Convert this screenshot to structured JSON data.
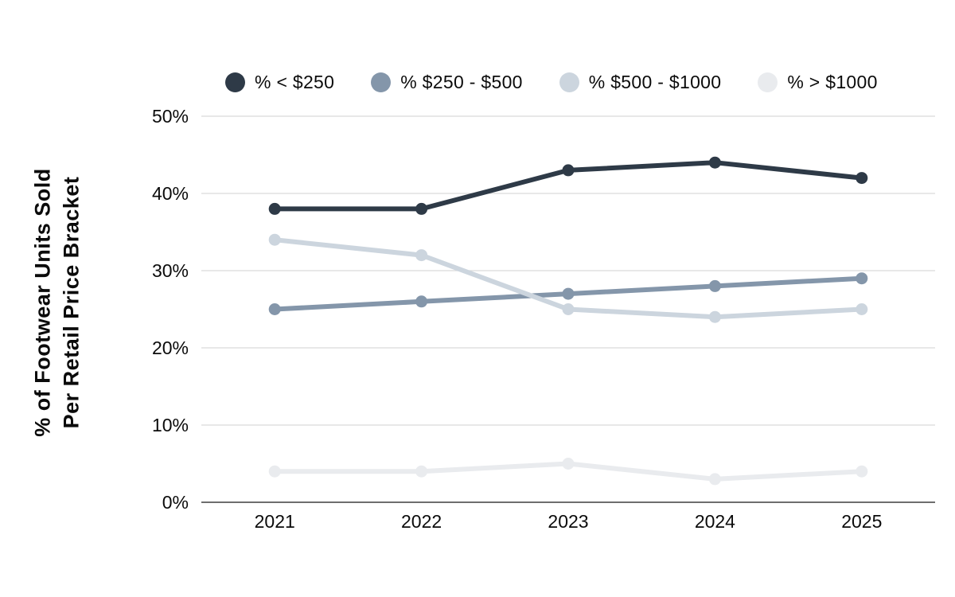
{
  "y_axis_title": {
    "line1": "% of Footwear Units Sold",
    "line2": "Per Retail Price Bracket"
  },
  "chart_data": {
    "type": "line",
    "categories": [
      "2021",
      "2022",
      "2023",
      "2024",
      "2025"
    ],
    "series": [
      {
        "name": "% < $250",
        "color": "#2e3a47",
        "values": [
          38,
          38,
          43,
          44,
          42
        ]
      },
      {
        "name": "% $250 - $500",
        "color": "#8496aa",
        "values": [
          25,
          26,
          27,
          28,
          29
        ]
      },
      {
        "name": "% $500 - $1000",
        "color": "#ccd5de",
        "values": [
          34,
          32,
          25,
          24,
          25
        ]
      },
      {
        "name": "% > $1000",
        "color": "#e9ebee",
        "values": [
          4,
          4,
          5,
          3,
          4
        ]
      }
    ],
    "title": "",
    "xlabel": "",
    "ylabel": "% of Footwear Units Sold Per Retail Price Bracket",
    "ylim": [
      0,
      50
    ],
    "ytick_step": 10,
    "yticks": [
      "0%",
      "10%",
      "20%",
      "30%",
      "40%",
      "50%"
    ],
    "grid": true,
    "legend_position": "top"
  },
  "style_colors": {
    "gridline": "#d9d9d9",
    "axis_line": "#6e6e6e",
    "text": "#0b0b0b",
    "background": "#ffffff"
  }
}
